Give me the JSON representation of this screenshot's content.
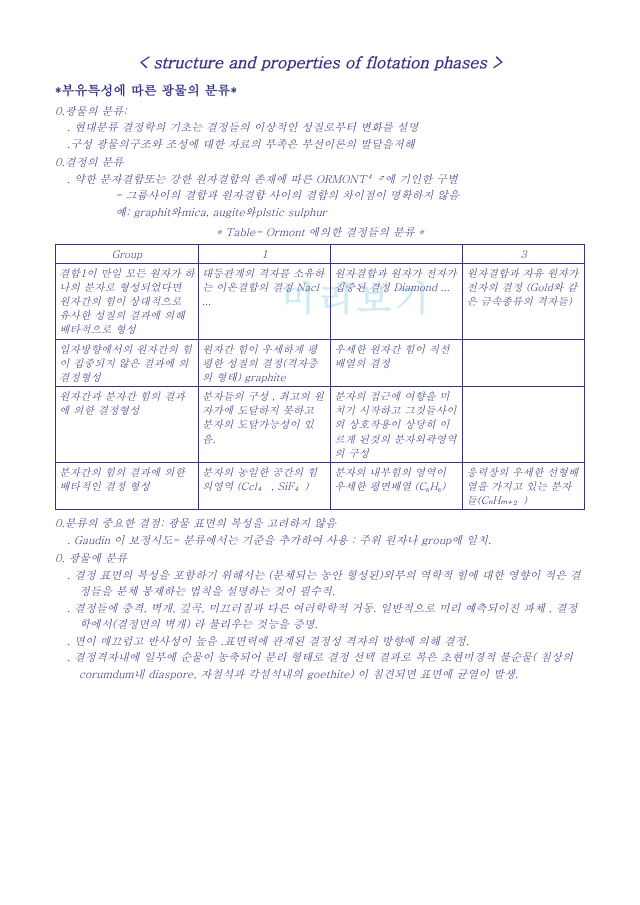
{
  "title": "< structure and properties of flotation phases >",
  "subtitle": "*부유특성에 따른 광물의 분류*",
  "s1": {
    "head": "0.광물의 분류:",
    "l1": ". 현대분류 결정학의 기초는 결정들의 이상적인 성질로부터 변화를 설명",
    "l2": ".구성 광물의구조와 조성에 대한 자료의 부족은 부선이론의 발달을저해"
  },
  "s2": {
    "head": "0.결정의 분류",
    "l1": ". 약한 분자결합또는 강한 원자결합의 존재에 따른 ORMONT⁴·⁷에 기인한 구별",
    "l2": "- 그룹사이의 결합과 원자결합 사이의 결합의 차이점이 명확하지 않음",
    "l3": "예: graphit와mica, augite와plstic sulphur"
  },
  "tablecap": "* Table- Ormont 에의한 결정들의 분류 *",
  "table": {
    "h": [
      "Group",
      "1",
      "",
      "3"
    ],
    "r1": [
      "결합1이 만일 모든 원자가 하나의 분자로 형성되었다면 원자간의 힘이 상대적으로 유사한 성질의 결과에 의해 배타적으로 형성",
      "대등관계의   격자를 소유하는 이온결합의 결정 Nacl ...",
      "원자결합과 원자가 전자가 집중된 결정 Diamond ...",
      "원자결합과 자유 원자가 전자의 결정 (Gold와 같은 금속종류의 격자들)"
    ],
    "r2": [
      "입자방향에서의   원자간의 힘이 집중되지 않은 결과에 의 결정형성",
      "원자간 힘이 우세하게 평평한 성질의 결정(격자층의 형태) graphite",
      "우세한 원자간 힘이 직선배열의 결정",
      ""
    ],
    "r3": [
      "원자간과 분자간 힘의 결과에 의한 결정형성",
      "분자들의 구성 , 최고의 원자가에 도달하지 못하고 분자의 도달가능성이 있음.",
      "분자의 접근에 여향을 미치기 시작하고 그것들사이의   상호작용이 상당히 이르게 된것의 분자외곽영역의 구성",
      ""
    ],
    "r4": [
      "분자간의 힘의 결과에 의한 배타적인 결정 형성",
      "분자의 농일한 공간의 힘의영역 (Ccl₄ , SiF₄)",
      "분자의 내부힘의 영역이 우세한 평면배열 (C₆H₆)",
      "응력장의 우세한 선형배열을 가지고 있는 분자들(CₙHₘ₊₂)"
    ]
  },
  "s3": {
    "head": "0.분류의 중요한 결점:  광물 표면의 복성을 고려하지 않음",
    "l1": ". Gaudin 이 보정시도- 분류에서는 기준을 추가하여 사용 : 주위 원자나 group에 일치."
  },
  "s4": {
    "head": "0. 광물에 분류",
    "p1": ". 결정 표면의 복성을 포함하기 위해서는 (분체되는 농안 형성된)외부의 역학적 힘에 대한 영향이 적은 결정들을 분체 봉제하는 법칙을 설명하는 것이  필수적.",
    "p2": ". 결정들에 충격, 벽개, 깊곡, 미끄러짐과 다른 여러학학적 거동. 일반적으로 미리 예측되이진 파체 , 결정학에서(결정면의 벽개) 라  불리우는 것능을 증명.",
    "p3": ". 면이 매끄럽고 반사성이 높음  .표면력에 관계된 결정성 격자의 방향에 의해 결정.",
    "p4": ". 결정격자내에 일부에 순물이 농축되어 분리 형태로 결정 선택 결과로 복은 초현미경적 불순물( 침상의 corumdum내 diaspore, 자철석과 각섬석내의 goethite) 이 침견되면 표면에 균열이 발생."
  },
  "colors": {
    "text": "#333388",
    "border": "#333388",
    "bg": "#ffffff",
    "watermark": "rgba(120,200,220,0.35)"
  },
  "watermark": "미리보기"
}
